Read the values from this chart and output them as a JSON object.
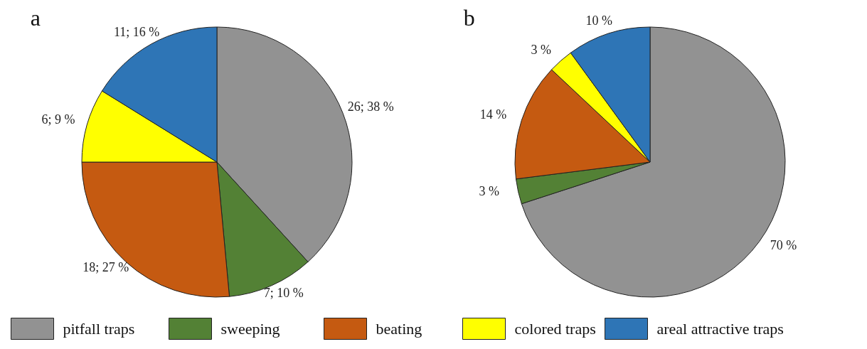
{
  "chart_data": [
    {
      "type": "pie",
      "title": "a",
      "categories": [
        "pitfall traps",
        "sweeping",
        "beating",
        "colored traps",
        "areal attractive traps"
      ],
      "values": [
        26,
        7,
        18,
        6,
        11
      ],
      "value_labels": [
        "26; 38 %",
        "7; 10 %",
        "18; 27 %",
        "6; 9 %",
        "11; 16 %"
      ],
      "colors": [
        "#929292",
        "#538135",
        "#c55a11",
        "#ffff00",
        "#2e75b6"
      ],
      "legend": "bottom"
    },
    {
      "type": "pie",
      "title": "b",
      "values": [
        70,
        3,
        14,
        3,
        10
      ],
      "value_labels": [
        "70 %",
        "3 %",
        "14 %",
        "3 %",
        "10 %"
      ],
      "colors": [
        "#929292",
        "#538135",
        "#c55a11",
        "#ffff00",
        "#2e75b6"
      ]
    }
  ]
}
